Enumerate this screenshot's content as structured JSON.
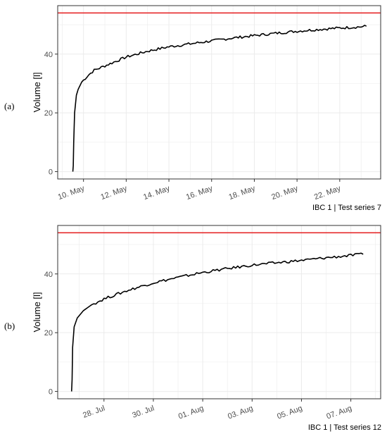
{
  "chart_data": [
    {
      "type": "line",
      "panel_label": "(a)",
      "ylabel": "Volume [l]",
      "caption": "IBC 1 | Test series 7",
      "x_unit": "date",
      "xlim": [
        "2021-05-08 19:00",
        "2021-05-23 22:00"
      ],
      "ylim": [
        -2.5,
        56.5
      ],
      "y_ticks": [
        0,
        20,
        40
      ],
      "x_ticks": [
        {
          "date": "2021-05-10",
          "label": "10. May"
        },
        {
          "date": "2021-05-12",
          "label": "12. May"
        },
        {
          "date": "2021-05-14",
          "label": "14. May"
        },
        {
          "date": "2021-05-16",
          "label": "16. May"
        },
        {
          "date": "2021-05-18",
          "label": "18. May"
        },
        {
          "date": "2021-05-20",
          "label": "20. May"
        },
        {
          "date": "2021-05-22",
          "label": "22. May"
        }
      ],
      "reference_line": {
        "y": 54,
        "color": "#e41a1c"
      },
      "line_color": "#000000",
      "grid": true,
      "series": [
        {
          "x": [
            "2021-05-09 12:00",
            "2021-05-09 12:30",
            "2021-05-09 13:00",
            "2021-05-09 14:00",
            "2021-05-09 16:00",
            "2021-05-09 18:00",
            "2021-05-09 22:00",
            "2021-05-10 06:00",
            "2021-05-10 12:00",
            "2021-05-11 00:00",
            "2021-05-11 12:00",
            "2021-05-12 00:00",
            "2021-05-13 00:00",
            "2021-05-14 00:00",
            "2021-05-15 00:00",
            "2021-05-16 00:00",
            "2021-05-17 00:00",
            "2021-05-18 00:00",
            "2021-05-19 00:00",
            "2021-05-20 00:00",
            "2021-05-21 00:00",
            "2021-05-22 00:00",
            "2021-05-22 12:00",
            "2021-05-23 00:00",
            "2021-05-23 06:00"
          ],
          "y": [
            0,
            2,
            10,
            20,
            26,
            28,
            30.5,
            33,
            34.5,
            36,
            37.5,
            39,
            41,
            42.5,
            43.5,
            44.5,
            45.5,
            46.3,
            47.1,
            47.8,
            48.4,
            48.9,
            49.1,
            49.3,
            49.5
          ]
        }
      ]
    },
    {
      "type": "line",
      "panel_label": "(b)",
      "ylabel": "Volume [l]",
      "caption": "IBC 1 | Test series 12",
      "x_unit": "date",
      "xlim": [
        "2021-07-26 03:00",
        "2021-08-08 05:00"
      ],
      "ylim": [
        -2.5,
        56.5
      ],
      "y_ticks": [
        0,
        20,
        40
      ],
      "x_ticks": [
        {
          "date": "2021-07-28",
          "label": "28. Jul"
        },
        {
          "date": "2021-07-30",
          "label": "30. Jul"
        },
        {
          "date": "2021-08-01",
          "label": "01. Aug"
        },
        {
          "date": "2021-08-03",
          "label": "03. Aug"
        },
        {
          "date": "2021-08-05",
          "label": "05. Aug"
        },
        {
          "date": "2021-08-07",
          "label": "07. Aug"
        }
      ],
      "reference_line": {
        "y": 54,
        "color": "#e41a1c"
      },
      "line_color": "#000000",
      "grid": true,
      "series": [
        {
          "x": [
            "2021-07-26 16:30",
            "2021-07-26 17:00",
            "2021-07-26 17:30",
            "2021-07-26 19:00",
            "2021-07-26 22:00",
            "2021-07-27 04:00",
            "2021-07-27 12:00",
            "2021-07-28 00:00",
            "2021-07-28 12:00",
            "2021-07-29 00:00",
            "2021-07-30 00:00",
            "2021-07-31 00:00",
            "2021-08-01 00:00",
            "2021-08-02 00:00",
            "2021-08-03 00:00",
            "2021-08-04 00:00",
            "2021-08-05 00:00",
            "2021-08-06 00:00",
            "2021-08-07 00:00",
            "2021-08-07 12:00"
          ],
          "y": [
            0,
            4,
            15,
            22,
            25,
            27.5,
            29.5,
            31.5,
            33,
            34.5,
            37,
            38.8,
            40.5,
            41.8,
            43,
            43.8,
            44.6,
            45.5,
            46.3,
            46.7
          ]
        }
      ]
    }
  ]
}
